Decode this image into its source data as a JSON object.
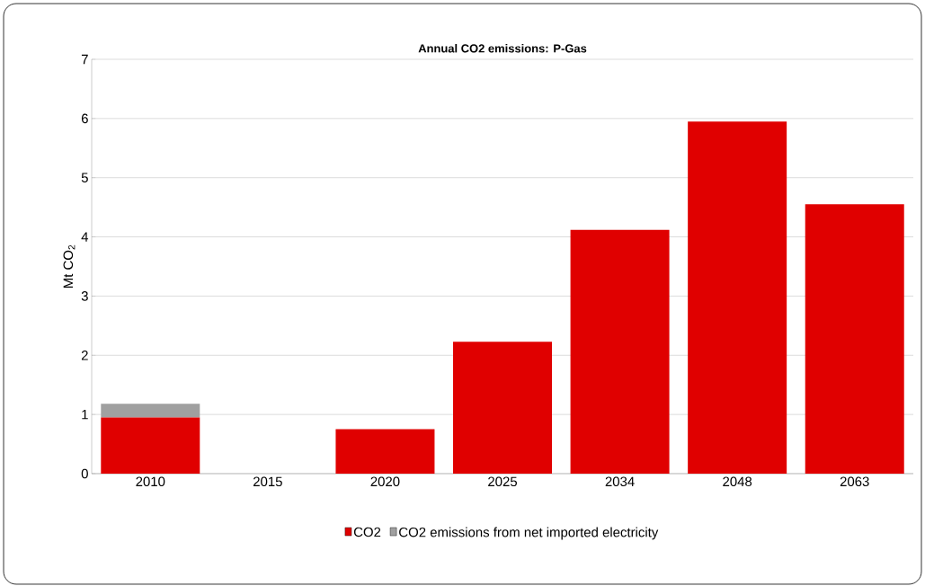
{
  "chart_data": {
    "type": "bar",
    "title": "**Annual CO2 emissions: P-Gas**",
    "ylabel": "Mt CO$_{2}$",
    "categories": [
      "2010",
      "2015",
      "2020",
      "2025",
      "2034",
      "2048",
      "2063"
    ],
    "series": [
      {
        "name": "CO2",
        "color": "#e00000",
        "values": [
          0.95,
          0,
          0.75,
          2.23,
          4.12,
          5.95,
          4.55
        ]
      },
      {
        "name": "CO2 emissions from net imported electricity",
        "color": "#a0a0a0",
        "values": [
          0.23,
          0,
          0,
          0,
          0,
          0,
          0
        ]
      }
    ],
    "stacked": true,
    "ylim": [
      0,
      7
    ],
    "yticks": [
      0,
      1,
      2,
      3,
      4,
      5,
      6,
      7
    ],
    "grid": "y",
    "legend": "bottom"
  }
}
